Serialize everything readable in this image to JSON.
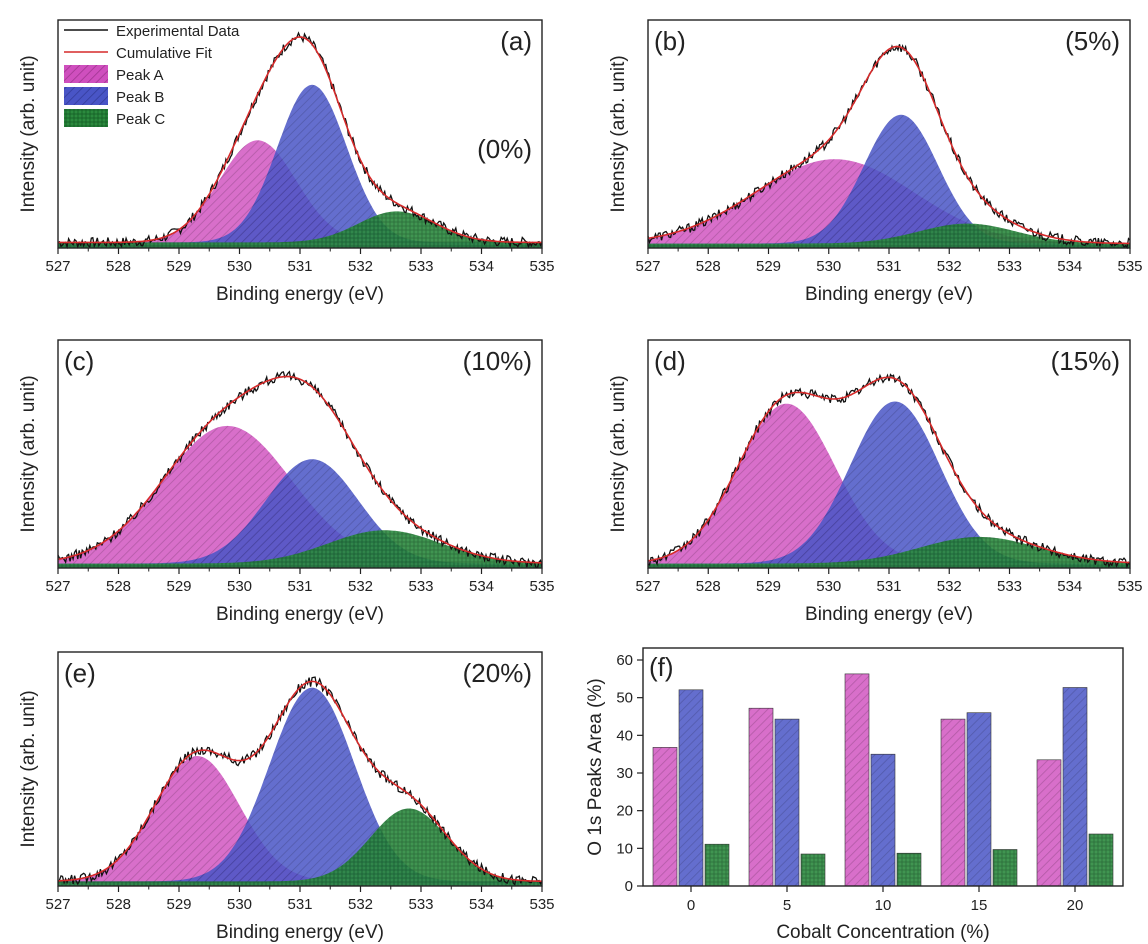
{
  "colors": {
    "experimental": "#111111",
    "fit": "#d62a2a",
    "peak_a": "#c63bb0",
    "peak_b": "#3a45b8",
    "peak_c": "#1f7a32",
    "axis": "#222222"
  },
  "common": {
    "xlabel": "Binding energy (eV)",
    "ylabel": "Intensity (arb. unit)",
    "xticks": [
      "527",
      "528",
      "529",
      "530",
      "531",
      "532",
      "533",
      "534",
      "535"
    ]
  },
  "legend": {
    "experimental": "Experimental Data",
    "fit": "Cumulative Fit",
    "peak_a": "Peak A",
    "peak_b": "Peak B",
    "peak_c": "Peak C"
  },
  "chart_data": [
    {
      "type": "area",
      "panel": "(a)",
      "concentration": "(0%)",
      "xlabel": "Binding energy (eV)",
      "ylabel": "Intensity (arb. unit)",
      "xlim": [
        527,
        535
      ],
      "ylim": [
        0,
        1
      ],
      "series": [
        {
          "name": "Peak A",
          "center": 530.3,
          "height": 0.46,
          "fwhm": 1.5
        },
        {
          "name": "Peak B",
          "center": 531.2,
          "height": 0.71,
          "fwhm": 1.35
        },
        {
          "name": "Peak C",
          "center": 532.6,
          "height": 0.14,
          "fwhm": 1.5
        }
      ],
      "baseline": 0.025
    },
    {
      "type": "area",
      "panel": "(b)",
      "concentration": "(5%)",
      "xlabel": "Binding energy (eV)",
      "ylabel": "Intensity (arb. unit)",
      "xlim": [
        527,
        535
      ],
      "ylim": [
        0,
        1
      ],
      "series": [
        {
          "name": "Peak A",
          "center": 530.1,
          "height": 0.38,
          "fwhm": 3.1
        },
        {
          "name": "Peak B",
          "center": 531.2,
          "height": 0.58,
          "fwhm": 1.45
        },
        {
          "name": "Peak C",
          "center": 532.3,
          "height": 0.09,
          "fwhm": 1.9
        }
      ],
      "baseline": 0.02
    },
    {
      "type": "area",
      "panel": "(c)",
      "concentration": "(10%)",
      "xlabel": "Binding energy (eV)",
      "ylabel": "Intensity (arb. unit)",
      "xlim": [
        527,
        535
      ],
      "ylim": [
        0,
        1
      ],
      "series": [
        {
          "name": "Peak A",
          "center": 529.8,
          "height": 0.62,
          "fwhm": 2.5
        },
        {
          "name": "Peak B",
          "center": 531.2,
          "height": 0.47,
          "fwhm": 1.8
        },
        {
          "name": "Peak C",
          "center": 532.4,
          "height": 0.15,
          "fwhm": 2.2
        }
      ],
      "baseline": 0.02
    },
    {
      "type": "area",
      "panel": "(d)",
      "concentration": "(15%)",
      "xlabel": "Binding energy (eV)",
      "ylabel": "Intensity (arb. unit)",
      "xlim": [
        527,
        535
      ],
      "ylim": [
        0,
        1
      ],
      "series": [
        {
          "name": "Peak A",
          "center": 529.3,
          "height": 0.72,
          "fwhm": 1.9
        },
        {
          "name": "Peak B",
          "center": 531.1,
          "height": 0.73,
          "fwhm": 1.75
        },
        {
          "name": "Peak C",
          "center": 532.5,
          "height": 0.12,
          "fwhm": 2.3
        }
      ],
      "baseline": 0.02
    },
    {
      "type": "area",
      "panel": "(e)",
      "concentration": "(20%)",
      "xlabel": "Binding energy (eV)",
      "ylabel": "Intensity (arb. unit)",
      "xlim": [
        527,
        535
      ],
      "ylim": [
        0,
        1
      ],
      "series": [
        {
          "name": "Peak A",
          "center": 529.3,
          "height": 0.55,
          "fwhm": 1.65
        },
        {
          "name": "Peak B",
          "center": 531.2,
          "height": 0.85,
          "fwhm": 1.65
        },
        {
          "name": "Peak C",
          "center": 532.8,
          "height": 0.32,
          "fwhm": 1.5
        }
      ],
      "baseline": 0.02
    },
    {
      "type": "bar",
      "panel": "(f)",
      "xlabel": "Cobalt Concentration (%)",
      "ylabel": "O 1s Peaks Area (%)",
      "categories": [
        "0",
        "5",
        "10",
        "15",
        "20"
      ],
      "ylim": [
        0,
        60
      ],
      "yticks": [
        "0",
        "10",
        "20",
        "30",
        "40",
        "50",
        "60"
      ],
      "series": [
        {
          "name": "Peak A",
          "values": [
            36.8,
            47.2,
            56.3,
            44.3,
            33.5
          ]
        },
        {
          "name": "Peak B",
          "values": [
            52.1,
            44.3,
            35.0,
            46.0,
            52.7
          ]
        },
        {
          "name": "Peak C",
          "values": [
            11.1,
            8.5,
            8.7,
            9.7,
            13.8
          ]
        }
      ]
    }
  ]
}
